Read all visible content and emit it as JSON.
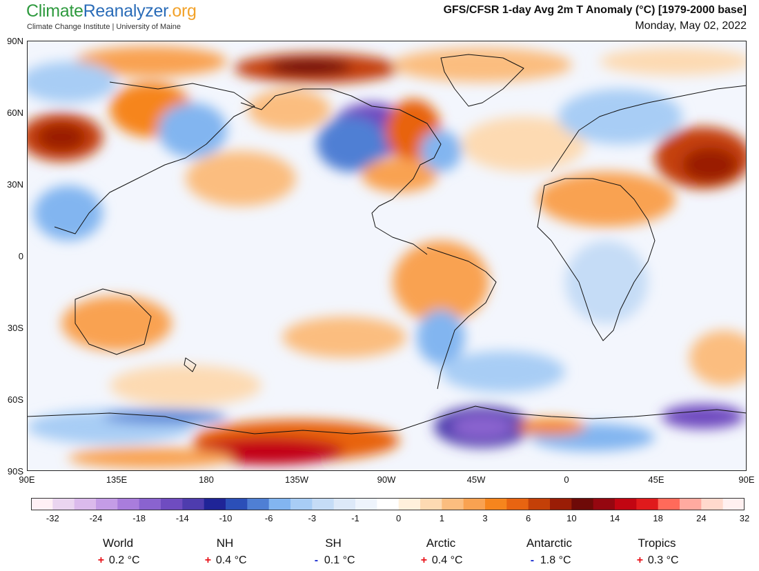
{
  "brand": {
    "part1": "Climate",
    "part2": "Reanalyzer",
    "part3": ".org",
    "subtitle": "Climate Change Institute | University of Maine"
  },
  "header": {
    "title": "GFS/CFSR 1-day Avg 2m T Anomaly (°C) [1979-2000 base]",
    "date": "Monday, May 02, 2022"
  },
  "axes": {
    "lat_labels": [
      "90N",
      "60N",
      "30N",
      "0",
      "30S",
      "60S",
      "90S"
    ],
    "lon_labels": [
      "90E",
      "135E",
      "180",
      "135W",
      "90W",
      "45W",
      "0",
      "45E",
      "90E"
    ]
  },
  "colorbar": {
    "colors": [
      "#fff0f5",
      "#ead5f0",
      "#dbbaec",
      "#c49ce6",
      "#a97ddc",
      "#8a63cf",
      "#6f4cc0",
      "#4e3cae",
      "#1f2497",
      "#2b4fb8",
      "#4f7fd4",
      "#82b5f0",
      "#a8cdf5",
      "#c5dcf6",
      "#dde9f8",
      "#eef4fc",
      "#ffffff",
      "#fff0dc",
      "#fddab2",
      "#fbbd7f",
      "#f9a251",
      "#f6851d",
      "#e86411",
      "#c44008",
      "#9a1d06",
      "#6e0a08",
      "#950710",
      "#c20512",
      "#e01a1c",
      "#ff6a5a",
      "#ffaaa0",
      "#ffd9cd",
      "#fff0f0"
    ],
    "tick_labels": [
      "-32",
      "-24",
      "-18",
      "-14",
      "-10",
      "-6",
      "-3",
      "-1",
      "0",
      "1",
      "3",
      "6",
      "10",
      "14",
      "18",
      "24",
      "32"
    ]
  },
  "stats": [
    {
      "name": "World",
      "sign": "+",
      "value": "0.2 °C"
    },
    {
      "name": "NH",
      "sign": "+",
      "value": "0.4 °C"
    },
    {
      "name": "SH",
      "sign": "-",
      "value": "0.1 °C"
    },
    {
      "name": "Arctic",
      "sign": "+",
      "value": "0.4 °C"
    },
    {
      "name": "Antarctic",
      "sign": "-",
      "value": "1.8 °C"
    },
    {
      "name": "Tropics",
      "sign": "+",
      "value": "0.3 °C"
    }
  ]
}
